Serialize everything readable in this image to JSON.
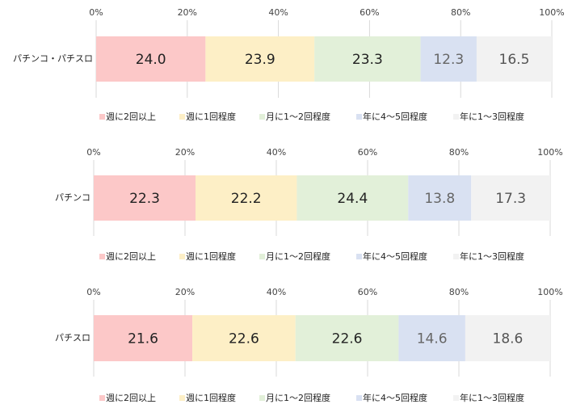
{
  "legend_labels": [
    "週に2回以上",
    "週に1回程度",
    "月に1～2回程度",
    "年に4～5回程度",
    "年に1～3回程度"
  ],
  "colors": [
    "#fcc8c8",
    "#fdefc6",
    "#e2f0d9",
    "#d9e1f2",
    "#f2f2f2"
  ],
  "chart_data": [
    {
      "type": "bar",
      "orientation": "horizontal-stacked-100",
      "categories": [
        "パチンコ・パチスロ"
      ],
      "series": [
        {
          "name": "週に2回以上",
          "values": [
            24.0
          ]
        },
        {
          "name": "週に1回程度",
          "values": [
            23.9
          ]
        },
        {
          "name": "月に1～2回程度",
          "values": [
            23.3
          ]
        },
        {
          "name": "年に4～5回程度",
          "values": [
            12.3
          ]
        },
        {
          "name": "年に1～3回程度",
          "values": [
            16.5
          ]
        }
      ],
      "xlim": [
        0,
        100
      ],
      "ticks": [
        "0%",
        "20%",
        "40%",
        "60%",
        "80%",
        "100%"
      ],
      "grid": true,
      "legend": "bottom"
    },
    {
      "type": "bar",
      "orientation": "horizontal-stacked-100",
      "categories": [
        "パチンコ"
      ],
      "series": [
        {
          "name": "週に2回以上",
          "values": [
            22.3
          ]
        },
        {
          "name": "週に1回程度",
          "values": [
            22.2
          ]
        },
        {
          "name": "月に1～2回程度",
          "values": [
            24.4
          ]
        },
        {
          "name": "年に4～5回程度",
          "values": [
            13.8
          ]
        },
        {
          "name": "年に1～3回程度",
          "values": [
            17.3
          ]
        }
      ],
      "xlim": [
        0,
        100
      ],
      "ticks": [
        "0%",
        "20%",
        "40%",
        "60%",
        "80%",
        "100%"
      ],
      "grid": true,
      "legend": "bottom"
    },
    {
      "type": "bar",
      "orientation": "horizontal-stacked-100",
      "categories": [
        "パチスロ"
      ],
      "series": [
        {
          "name": "週に2回以上",
          "values": [
            21.6
          ]
        },
        {
          "name": "週に1回程度",
          "values": [
            22.6
          ]
        },
        {
          "name": "月に1～2回程度",
          "values": [
            22.6
          ]
        },
        {
          "name": "年に4～5回程度",
          "values": [
            14.6
          ]
        },
        {
          "name": "年に1～3回程度",
          "values": [
            18.6
          ]
        }
      ],
      "xlim": [
        0,
        100
      ],
      "ticks": [
        "0%",
        "20%",
        "40%",
        "60%",
        "80%",
        "100%"
      ],
      "grid": true,
      "legend": "bottom"
    }
  ]
}
